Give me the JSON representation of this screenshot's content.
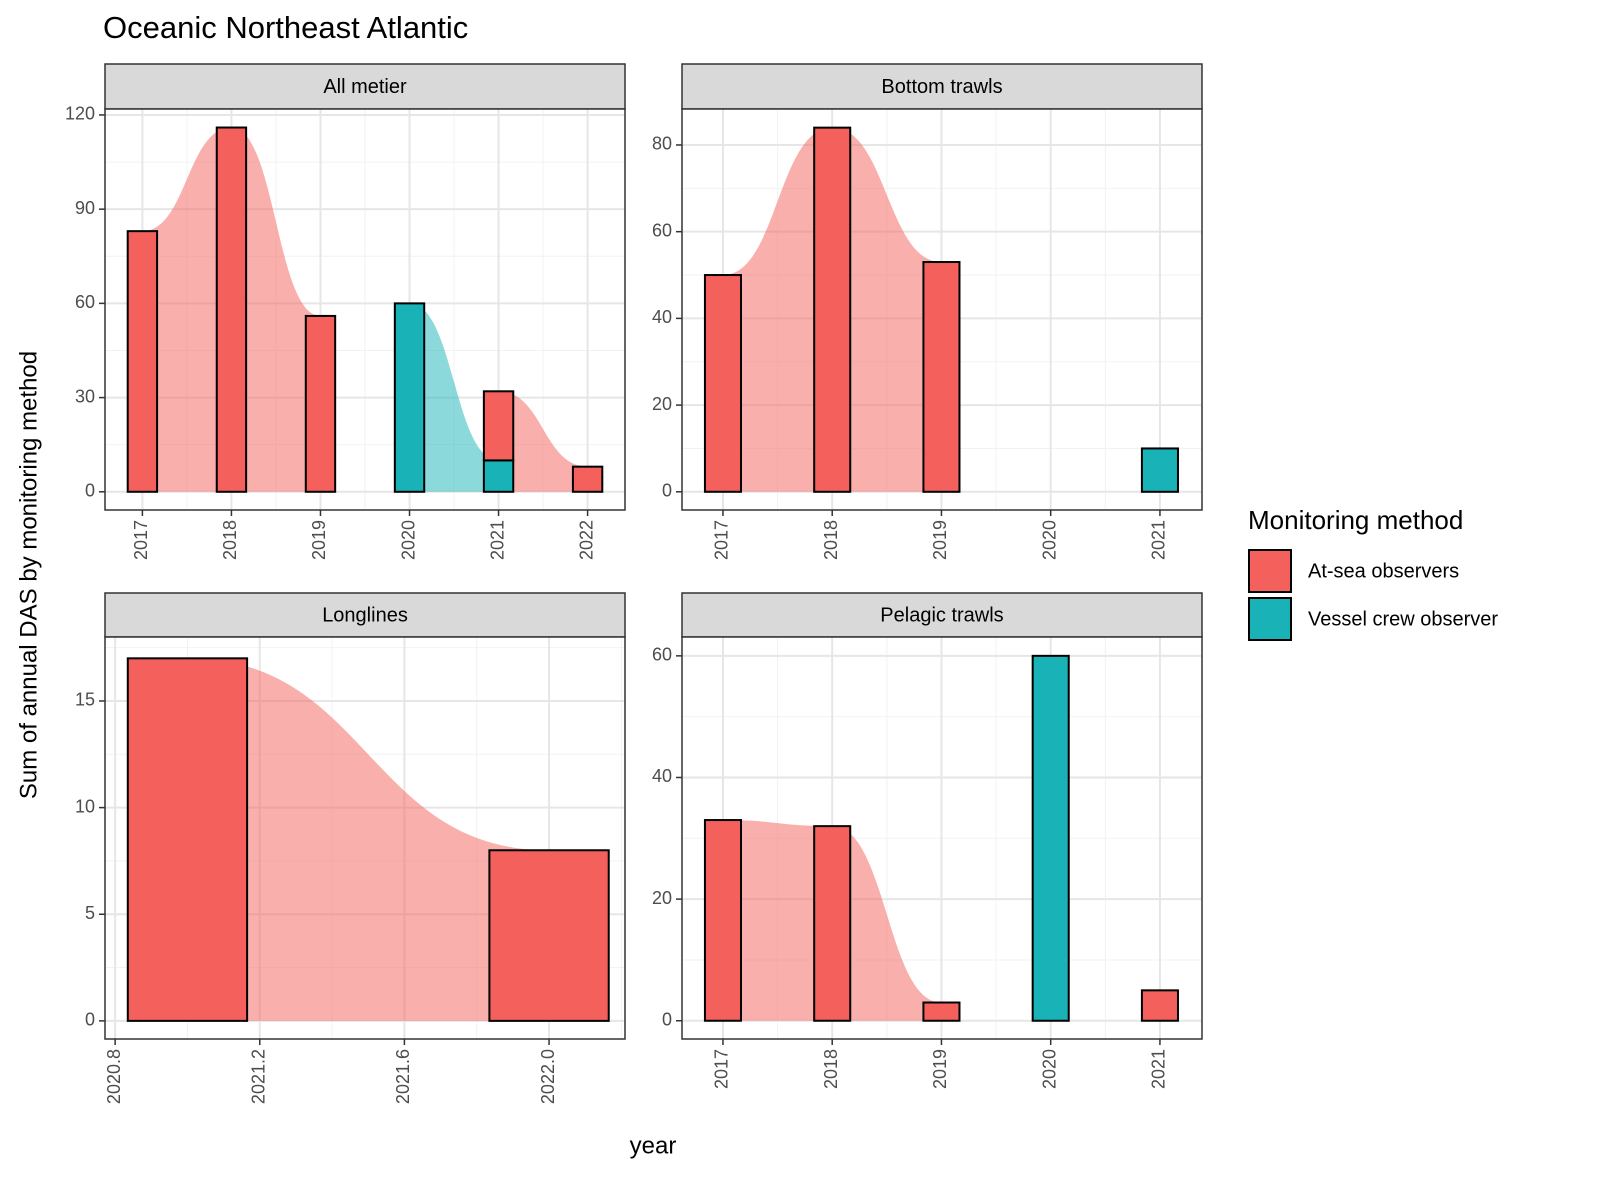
{
  "title": "Oceanic Northeast Atlantic",
  "xlabel": "year",
  "ylabel": "Sum of annual DAS by monitoring method",
  "legend_title": "Monitoring method",
  "chart_data": [
    {
      "type": "bar",
      "title": "All metier",
      "x": [
        2017,
        2018,
        2019,
        2020,
        2021,
        2022
      ],
      "series": [
        {
          "name": "At-sea observers",
          "color": "#F4615C",
          "values": [
            83,
            116,
            56,
            null,
            22,
            8
          ]
        },
        {
          "name": "Vessel crew observer",
          "color": "#19B3B7",
          "values": [
            null,
            null,
            null,
            60,
            10,
            null
          ]
        }
      ],
      "xlim": [
        2016.58,
        2022.42
      ],
      "xticks": [
        2017,
        2018,
        2019,
        2020,
        2021,
        2022
      ],
      "ylim": [
        -5.8,
        121.9
      ],
      "yticks": [
        0,
        30,
        60,
        90,
        120
      ],
      "grid": true
    },
    {
      "type": "bar",
      "title": "Bottom trawls",
      "x": [
        2017,
        2018,
        2019,
        2020,
        2021
      ],
      "series": [
        {
          "color": "#F4615C",
          "values": [
            50,
            84,
            53,
            null,
            null
          ]
        },
        {
          "color": "#19B3B7",
          "values": [
            null,
            null,
            null,
            null,
            10
          ]
        }
      ],
      "xlim": [
        2016.625,
        2021.385
      ],
      "xticks": [
        2017,
        2018,
        2019,
        2020,
        2021
      ],
      "ylim": [
        -4.2,
        88.3
      ],
      "yticks": [
        0,
        20,
        40,
        60,
        80
      ],
      "grid": true
    },
    {
      "type": "bar",
      "title": "Longlines",
      "x": [
        2021,
        2022
      ],
      "series": [
        {
          "color": "#F4615C",
          "values": [
            17,
            8
          ]
        }
      ],
      "xlim": [
        2020.772,
        2022.21
      ],
      "xticks": [
        2020.8,
        2021.2,
        2021.6,
        {
          "value": 2022,
          "label": "2022.0"
        }
      ],
      "ylim": [
        -0.85,
        18.0
      ],
      "yticks": [
        0,
        5,
        10,
        15
      ],
      "grid": true
    },
    {
      "type": "bar",
      "title": "Pelagic trawls",
      "x": [
        2017,
        2018,
        2019,
        2020,
        2021
      ],
      "series": [
        {
          "color": "#F4615C",
          "values": [
            33,
            32,
            3,
            null,
            5
          ]
        },
        {
          "color": "#19B3B7",
          "values": [
            null,
            null,
            null,
            60,
            null
          ]
        }
      ],
      "xlim": [
        2016.625,
        2021.385
      ],
      "xticks": [
        2017,
        2018,
        2019,
        2020,
        2021
      ],
      "ylim": [
        -3.0,
        63.1
      ],
      "yticks": [
        0,
        20,
        40,
        60
      ],
      "grid": true
    }
  ]
}
